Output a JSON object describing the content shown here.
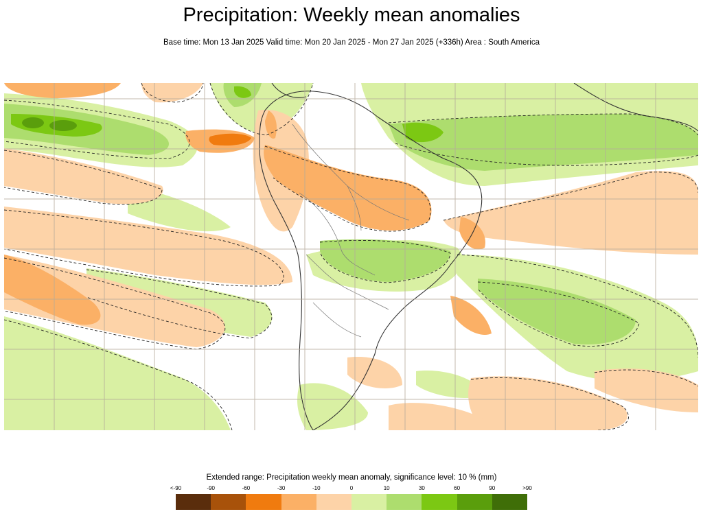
{
  "title": "Precipitation: Weekly mean anomalies",
  "subtitle": "Base time: Mon 13 Jan 2025 Valid time: Mon 20 Jan 2025 - Mon 27 Jan 2025 (+336h) Area : South America",
  "legend": {
    "title": "Extended range: Precipitation weekly mean anomaly, significance level: 10 % (mm)",
    "ticks": [
      "<-90",
      "-90",
      "-60",
      "-30",
      "-10",
      "0",
      "10",
      "30",
      "60",
      "90",
      ">90"
    ],
    "colors": [
      "#5a2d0c",
      "#a8520a",
      "#f07b0f",
      "#fbb066",
      "#fdd3a8",
      "#d9f0a3",
      "#addd6e",
      "#7cc813",
      "#5a9e0c",
      "#3f6e08"
    ]
  },
  "map": {
    "colors": {
      "ocean": "#ffffff",
      "dry_light": "#fdd3a8",
      "dry_mid": "#fbb066",
      "dry_strong": "#f07b0f",
      "wet_light": "#d9f0a3",
      "wet_mid": "#addd6e",
      "wet_strong": "#7cc813",
      "wet_very": "#5a9e0c",
      "grid": "#b5aa9a",
      "coast": "#333333",
      "border": "#777777"
    }
  }
}
